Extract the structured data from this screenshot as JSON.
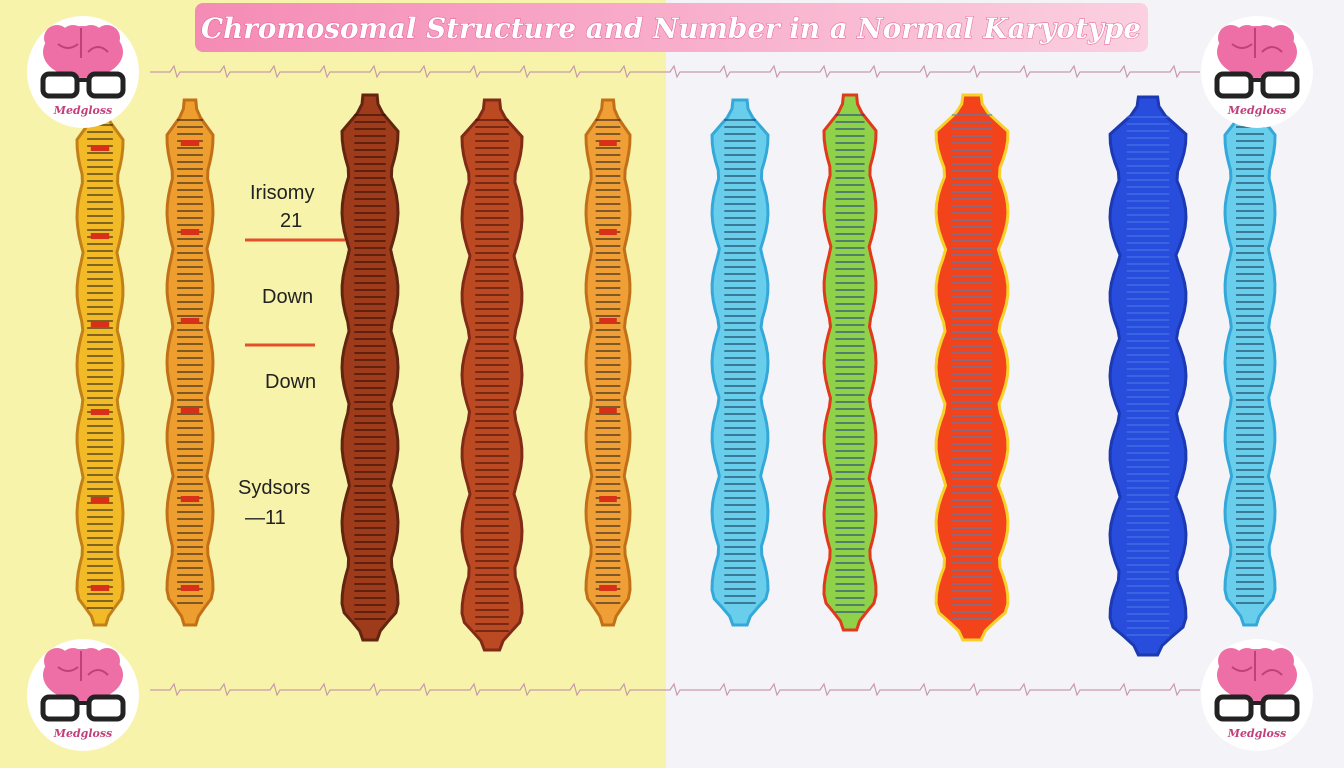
{
  "header": {
    "title": "Chromosomal Structure and Number in a Normal Karyotype"
  },
  "labels": [
    "Irisomy",
    "21",
    "Down",
    "Down",
    "Sydsors",
    "—11"
  ],
  "logos": [
    "Medgloss",
    "Medgloss",
    "Medgloss",
    "Medgloss"
  ]
}
